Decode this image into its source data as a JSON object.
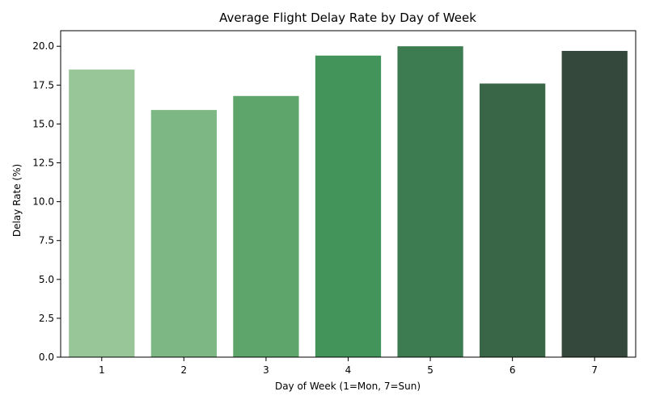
{
  "chart_data": {
    "type": "bar",
    "title": "Average Flight Delay Rate by Day of Week",
    "xlabel": "Day of Week (1=Mon, 7=Sun)",
    "ylabel": "Delay Rate (%)",
    "categories": [
      "1",
      "2",
      "3",
      "4",
      "5",
      "6",
      "7"
    ],
    "values": [
      18.5,
      15.9,
      16.8,
      19.4,
      20.0,
      17.6,
      19.7
    ],
    "ylim": [
      0,
      21
    ],
    "yticks": [
      "0.0",
      "2.5",
      "5.0",
      "7.5",
      "10.0",
      "12.5",
      "15.0",
      "17.5",
      "20.0"
    ],
    "colors": [
      "#98c699",
      "#7db784",
      "#5ea56c",
      "#42945a",
      "#3d7c51",
      "#386646",
      "#34483c"
    ],
    "grid": false,
    "legend": "none"
  }
}
